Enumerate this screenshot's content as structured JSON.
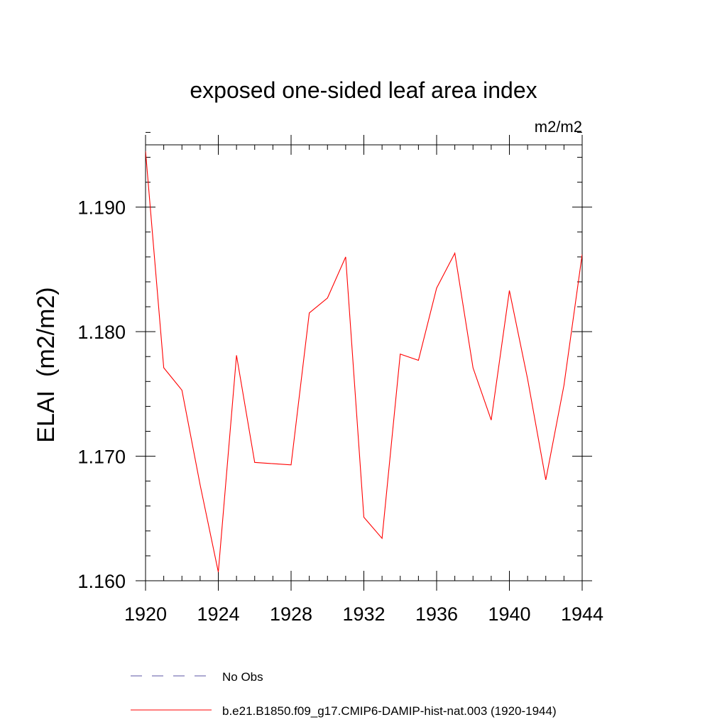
{
  "chart_data": {
    "type": "line",
    "title": "exposed one-sided leaf area index",
    "units_label": "m2/m2",
    "ylabel": "ELAI  (m2/m2)",
    "xlabel": "",
    "xlim": [
      1920,
      1944
    ],
    "ylim": [
      1.16,
      1.195
    ],
    "x_ticks": [
      1920,
      1924,
      1928,
      1932,
      1936,
      1940,
      1944
    ],
    "x_tick_labels": [
      "1920",
      "1924",
      "1928",
      "1932",
      "1936",
      "1940",
      "1944"
    ],
    "y_ticks": [
      1.16,
      1.17,
      1.18,
      1.19
    ],
    "y_tick_labels": [
      "1.160",
      "1.170",
      "1.180",
      "1.190"
    ],
    "x_minor_step": 1,
    "y_minor_step": 0.002,
    "grid": false,
    "legend_placement": "bottom",
    "legend": [
      {
        "name": "No Obs",
        "color": "#5b55a5",
        "dash": true
      },
      {
        "name": "b.e21.B1850.f09_g17.CMIP6-DAMIP-hist-nat.003 (1920-1944)",
        "color": "#ff0000",
        "dash": false
      }
    ],
    "series": [
      {
        "name": "b.e21.B1850.f09_g17.CMIP6-DAMIP-hist-nat.003 (1920-1944)",
        "color": "#ff0000",
        "x": [
          1920,
          1921,
          1922,
          1923,
          1924,
          1925,
          1926,
          1927,
          1928,
          1929,
          1930,
          1931,
          1932,
          1933,
          1934,
          1935,
          1936,
          1937,
          1938,
          1939,
          1940,
          1941,
          1942,
          1943,
          1944
        ],
        "values": [
          1.1945,
          1.1771,
          1.1753,
          1.1677,
          1.1607,
          1.1781,
          1.1695,
          1.1694,
          1.1693,
          1.1815,
          1.1827,
          1.186,
          1.1651,
          1.1634,
          1.1782,
          1.1777,
          1.1835,
          1.1863,
          1.1771,
          1.1729,
          1.1833,
          1.1762,
          1.1681,
          1.1757,
          1.1862
        ]
      }
    ]
  }
}
